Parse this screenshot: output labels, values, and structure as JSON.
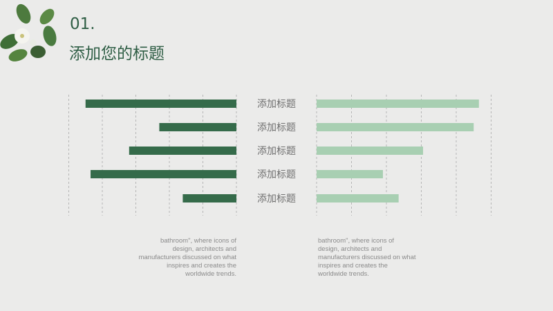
{
  "header": {
    "number": "01.",
    "title": "添加您的标题"
  },
  "chart_data": {
    "type": "bar",
    "orientation": "horizontal-butterfly",
    "categories": [
      "添加标题",
      "添加标题",
      "添加标题",
      "添加标题",
      "添加标题"
    ],
    "series": [
      {
        "values": [
          4.5,
          2.3,
          3.2,
          4.35,
          1.6
        ],
        "color": "#356b4a",
        "direction": "left"
      },
      {
        "values": [
          4.65,
          4.5,
          3.05,
          1.9,
          2.35
        ],
        "color": "#a8cfb2",
        "direction": "right"
      }
    ],
    "xlim": [
      0,
      5
    ],
    "grid": true
  },
  "descriptions": [
    "bathroom\", where icons of design, architects and manufacturers discussed on what inspires and creates the worldwide trends.",
    "bathroom\", where icons of design, architects and manufacturers discussed on what inspires and creates the worldwide trends."
  ]
}
